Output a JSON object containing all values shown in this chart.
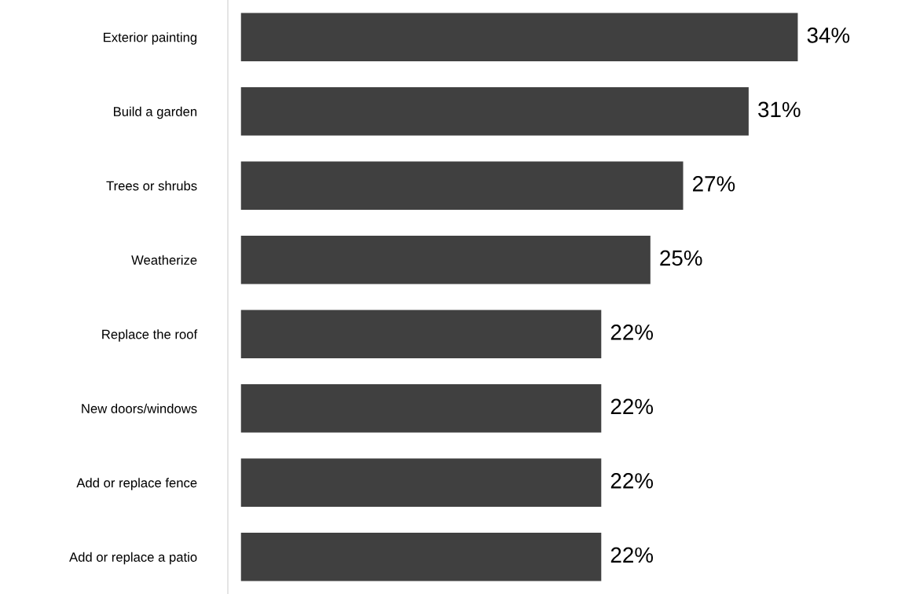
{
  "chart_data": {
    "type": "bar",
    "orientation": "horizontal",
    "categories": [
      "Exterior painting",
      "Build a garden",
      "Trees or shrubs",
      "Weatherize",
      "Replace the roof",
      "New doors/windows",
      "Add or replace fence",
      "Add or replace a patio"
    ],
    "values": [
      34,
      31,
      27,
      25,
      22,
      22,
      22,
      22
    ],
    "value_labels": [
      "34%",
      "31%",
      "27%",
      "25%",
      "22%",
      "22%",
      "22%",
      "22%"
    ],
    "color": "#404040",
    "tick_labels": "y",
    "grid": false,
    "legend": false
  }
}
